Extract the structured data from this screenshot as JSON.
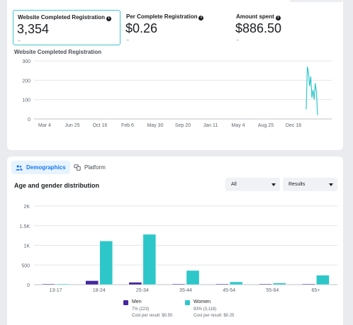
{
  "metrics": [
    {
      "label": "Website Completed Registration",
      "value": "3,354",
      "delta": "--",
      "selected": true
    },
    {
      "label": "Per Complete Registration",
      "value": "$0.26",
      "delta": "--",
      "selected": false
    },
    {
      "label": "Amount spent",
      "value": "$886.50",
      "delta": "--",
      "selected": false
    }
  ],
  "line_chart_title": "Website Completed Registration",
  "tabs": [
    {
      "label": "Demographics",
      "active": true,
      "icon": "people-icon"
    },
    {
      "label": "Platform",
      "active": false,
      "icon": "devices-icon"
    }
  ],
  "bar_chart_title": "Age and gender distribution",
  "filters": {
    "all_label": "All",
    "results_label": "Results"
  },
  "legend": [
    {
      "name": "Men",
      "stat": "7% (223)",
      "cost": "Cost per result: $0.50",
      "color": "#4527a0"
    },
    {
      "name": "Women",
      "stat": "93% (3,118)",
      "cost": "Cost per result: $0.25",
      "color": "#2ec7c9"
    }
  ],
  "chart_data": [
    {
      "type": "line",
      "title": "Website Completed Registration",
      "x_tick_labels": [
        "Mar 4",
        "Jun 25",
        "Oct 16",
        "Feb 6",
        "May 30",
        "Sep 20",
        "Jan 11",
        "May 4",
        "Aug 25",
        "Dec 16"
      ],
      "y_tick_labels": [
        "0",
        "100",
        "200",
        "300"
      ],
      "ylim": [
        0,
        300
      ],
      "grid": true,
      "color": "#2ec7c9",
      "series": [
        {
          "values": [
            50,
            270,
            240,
            170,
            220,
            110,
            150,
            100,
            185,
            140,
            20
          ]
        }
      ]
    },
    {
      "type": "bar",
      "title": "Age and gender distribution",
      "categories": [
        "13-17",
        "18-24",
        "25-34",
        "35-44",
        "45-54",
        "55-64",
        "65+"
      ],
      "y_tick_labels": [
        "0",
        "500",
        "1K",
        "1.5K",
        "2K"
      ],
      "ylim": [
        0,
        2000
      ],
      "grid": true,
      "legend": "bottom",
      "series": [
        {
          "name": "Men",
          "color": "#4527a0",
          "values": [
            5,
            100,
            60,
            15,
            5,
            5,
            5
          ]
        },
        {
          "name": "Women",
          "color": "#2ec7c9",
          "values": [
            10,
            1110,
            1280,
            360,
            70,
            40,
            240
          ]
        }
      ]
    }
  ]
}
